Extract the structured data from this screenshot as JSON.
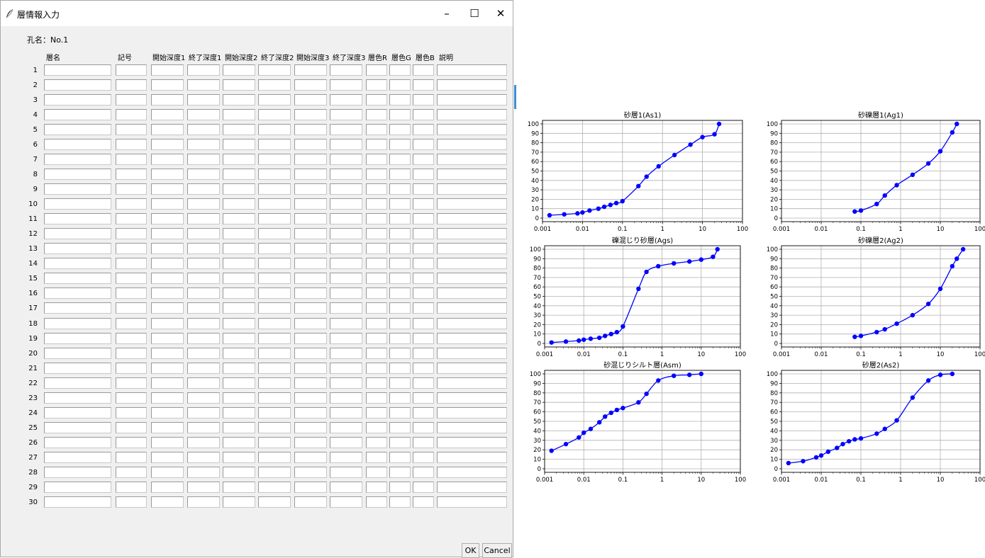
{
  "window": {
    "title": "層情報入力",
    "controls": {
      "minimize": "–",
      "maximize": "☐",
      "close": "✕"
    }
  },
  "form": {
    "hole_label": "孔名：No.1",
    "columns": [
      "層名",
      "記号",
      "開始深度1",
      "終了深度1",
      "開始深度2",
      "終了深度2",
      "開始深度3",
      "終了深度3",
      "層色R",
      "層色G",
      "層色B",
      "説明"
    ],
    "row_numbers": [
      "1",
      "2",
      "3",
      "4",
      "5",
      "6",
      "7",
      "8",
      "9",
      "10",
      "11",
      "12",
      "13",
      "14",
      "15",
      "16",
      "17",
      "18",
      "19",
      "20",
      "21",
      "22",
      "23",
      "24",
      "25",
      "26",
      "27",
      "28",
      "29",
      "30"
    ]
  },
  "buttons": {
    "ok": "OK",
    "cancel": "Cancel"
  },
  "colors": {
    "series": "#0000ff",
    "grid": "#b0b0b0",
    "window_bg": "#f0f0f0"
  },
  "chart_data": [
    {
      "type": "line",
      "title": "砂層1(As1)",
      "xscale": "log",
      "xlim": [
        0.001,
        100
      ],
      "ylim": [
        0,
        100
      ],
      "xticks": [
        "0.001",
        "0.01",
        "0.1",
        "1",
        "10",
        "100"
      ],
      "yticks": [
        "0",
        "10",
        "20",
        "30",
        "40",
        "50",
        "60",
        "70",
        "80",
        "90",
        "100"
      ],
      "grid": true,
      "series": [
        {
          "x": [
            0.0015,
            0.0035,
            0.0075,
            0.01,
            0.015,
            0.025,
            0.035,
            0.05,
            0.07,
            0.1,
            0.25,
            0.4,
            0.8,
            2,
            5,
            10,
            20,
            26
          ],
          "y": [
            3,
            4,
            5,
            6,
            8,
            10,
            12,
            14,
            16,
            18,
            34,
            44,
            55,
            67,
            78,
            86,
            89,
            100
          ]
        }
      ]
    },
    {
      "type": "line",
      "title": "砂礫層1(Ag1)",
      "xscale": "log",
      "xlim": [
        0.001,
        100
      ],
      "ylim": [
        0,
        100
      ],
      "xticks": [
        "0.001",
        "0.01",
        "0.1",
        "1",
        "10",
        "100"
      ],
      "yticks": [
        "0",
        "10",
        "20",
        "30",
        "40",
        "50",
        "60",
        "70",
        "80",
        "90",
        "100"
      ],
      "grid": true,
      "series": [
        {
          "x": [
            0.07,
            0.1,
            0.25,
            0.4,
            0.8,
            2,
            5,
            10,
            20,
            26
          ],
          "y": [
            7,
            8,
            15,
            24,
            35,
            46,
            58,
            71,
            91,
            100
          ]
        }
      ]
    },
    {
      "type": "line",
      "title": "礫混じり砂層(Ags)",
      "xscale": "log",
      "xlim": [
        0.001,
        100
      ],
      "ylim": [
        0,
        100
      ],
      "xticks": [
        "0.001",
        "0.01",
        "0.1",
        "1",
        "10",
        "100"
      ],
      "yticks": [
        "0",
        "10",
        "20",
        "30",
        "40",
        "50",
        "60",
        "70",
        "80",
        "90",
        "100"
      ],
      "grid": true,
      "series": [
        {
          "x": [
            0.0015,
            0.0035,
            0.0075,
            0.01,
            0.015,
            0.025,
            0.035,
            0.05,
            0.07,
            0.1,
            0.25,
            0.4,
            0.8,
            2,
            5,
            10,
            20,
            26
          ],
          "y": [
            1,
            2,
            3,
            4,
            5,
            6,
            8,
            10,
            12,
            18,
            58,
            76,
            82,
            85,
            87,
            89,
            92,
            100
          ]
        }
      ]
    },
    {
      "type": "line",
      "title": "砂礫層2(Ag2)",
      "xscale": "log",
      "xlim": [
        0.001,
        100
      ],
      "ylim": [
        0,
        100
      ],
      "xticks": [
        "0.001",
        "0.01",
        "0.1",
        "1",
        "10",
        "100"
      ],
      "yticks": [
        "0",
        "10",
        "20",
        "30",
        "40",
        "50",
        "60",
        "70",
        "80",
        "90",
        "100"
      ],
      "grid": true,
      "series": [
        {
          "x": [
            0.07,
            0.1,
            0.25,
            0.4,
            0.8,
            2,
            5,
            10,
            20,
            26,
            37.5
          ],
          "y": [
            7,
            8,
            12,
            15,
            21,
            30,
            42,
            58,
            82,
            90,
            100
          ]
        }
      ]
    },
    {
      "type": "line",
      "title": "砂混じりシルト層(Asm)",
      "xscale": "log",
      "xlim": [
        0.001,
        100
      ],
      "ylim": [
        0,
        100
      ],
      "xticks": [
        "0.001",
        "0.01",
        "0.1",
        "1",
        "10",
        "100"
      ],
      "yticks": [
        "0",
        "10",
        "20",
        "30",
        "40",
        "50",
        "60",
        "70",
        "80",
        "90",
        "100"
      ],
      "grid": true,
      "series": [
        {
          "x": [
            0.0015,
            0.0035,
            0.0075,
            0.01,
            0.015,
            0.025,
            0.035,
            0.05,
            0.07,
            0.1,
            0.25,
            0.4,
            0.8,
            2,
            5,
            10
          ],
          "y": [
            19,
            26,
            33,
            38,
            42,
            49,
            55,
            59,
            62,
            64,
            70,
            79,
            93,
            98,
            99,
            100
          ]
        }
      ]
    },
    {
      "type": "line",
      "title": "砂層2(As2)",
      "xscale": "log",
      "xlim": [
        0.001,
        100
      ],
      "ylim": [
        0,
        100
      ],
      "xticks": [
        "0.001",
        "0.01",
        "0.1",
        "1",
        "10",
        "100"
      ],
      "yticks": [
        "0",
        "10",
        "20",
        "30",
        "40",
        "50",
        "60",
        "70",
        "80",
        "90",
        "100"
      ],
      "grid": true,
      "series": [
        {
          "x": [
            0.0015,
            0.0035,
            0.0075,
            0.01,
            0.015,
            0.025,
            0.035,
            0.05,
            0.07,
            0.1,
            0.25,
            0.4,
            0.8,
            2,
            5,
            10,
            20
          ],
          "y": [
            6,
            8,
            12,
            14,
            18,
            22,
            26,
            29,
            31,
            32,
            37,
            42,
            51,
            75,
            93,
            99,
            100
          ]
        }
      ]
    }
  ]
}
